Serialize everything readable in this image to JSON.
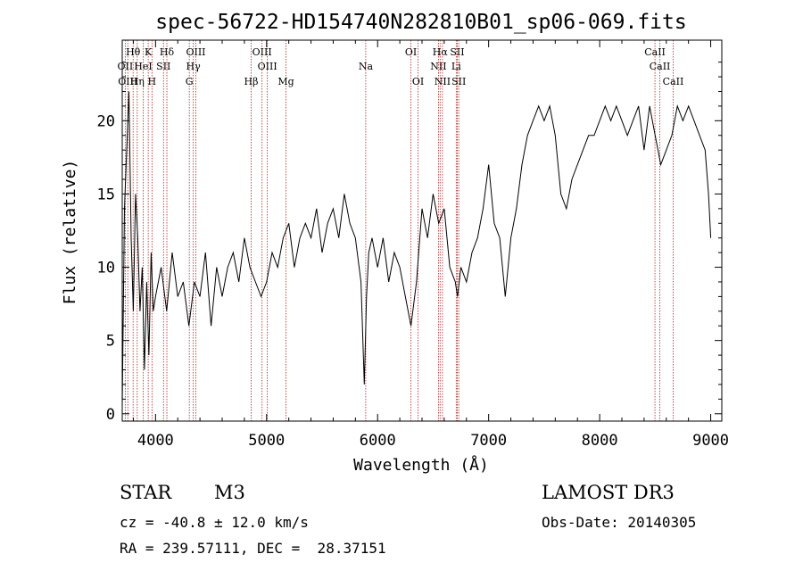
{
  "chart_data": {
    "type": "line",
    "title": "spec-56722-HD154740N282810B01_sp06-069.fits",
    "xlabel": "Wavelength (Å)",
    "ylabel": "Flux (relative)",
    "xlim": [
      3700,
      9100
    ],
    "ylim": [
      -0.5,
      25.5
    ],
    "xticks": [
      4000,
      5000,
      6000,
      7000,
      8000,
      9000
    ],
    "yticks": [
      0,
      5,
      10,
      15,
      20
    ],
    "series": [
      {
        "x": [
          3700,
          3720,
          3740,
          3760,
          3780,
          3800,
          3820,
          3840,
          3860,
          3880,
          3900,
          3920,
          3940,
          3960,
          3980,
          4000,
          4050,
          4100,
          4150,
          4200,
          4250,
          4300,
          4350,
          4400,
          4450,
          4500,
          4550,
          4600,
          4650,
          4700,
          4750,
          4800,
          4850,
          4900,
          4950,
          5000,
          5050,
          5100,
          5150,
          5200,
          5250,
          5300,
          5350,
          5400,
          5450,
          5500,
          5550,
          5600,
          5650,
          5700,
          5750,
          5800,
          5850,
          5880,
          5900,
          5920,
          5950,
          6000,
          6050,
          6100,
          6150,
          6200,
          6250,
          6300,
          6350,
          6400,
          6450,
          6500,
          6550,
          6600,
          6650,
          6700,
          6720,
          6750,
          6800,
          6850,
          6900,
          6950,
          7000,
          7050,
          7100,
          7150,
          7200,
          7250,
          7300,
          7350,
          7400,
          7450,
          7500,
          7550,
          7600,
          7650,
          7700,
          7750,
          7800,
          7850,
          7900,
          7950,
          8000,
          8050,
          8100,
          8150,
          8200,
          8250,
          8300,
          8350,
          8400,
          8450,
          8500,
          8550,
          8600,
          8650,
          8700,
          8750,
          8800,
          8850,
          8900,
          8950,
          8980,
          9000
        ],
        "y": [
          0.5,
          14,
          18,
          22,
          12,
          7,
          15,
          12,
          7,
          10,
          3,
          9,
          4,
          11,
          7,
          8,
          10,
          7,
          11,
          8,
          9,
          6,
          9,
          8,
          11,
          6,
          10,
          8,
          10,
          11,
          9,
          12,
          10,
          9,
          8,
          9,
          11,
          10,
          12,
          13,
          10,
          12,
          13,
          12,
          14,
          11,
          13,
          14,
          12,
          15,
          13,
          12,
          9,
          2,
          8,
          11,
          12,
          10,
          12,
          9,
          11,
          10,
          8,
          6,
          9,
          14,
          12,
          15,
          13,
          14,
          10,
          9,
          8,
          10,
          9,
          11,
          12,
          14,
          17,
          13,
          12,
          8,
          12,
          14,
          17,
          19,
          20,
          21,
          20,
          21,
          19,
          15,
          14,
          16,
          17,
          18,
          19,
          19,
          20,
          21,
          20,
          21,
          20,
          19,
          20,
          21,
          18,
          21,
          19,
          17,
          18,
          19,
          21,
          20,
          21,
          20,
          19,
          18,
          15,
          12
        ]
      }
    ],
    "line_markers": [
      {
        "label": "Hθ",
        "x": 3798,
        "tier": 1
      },
      {
        "label": "K",
        "x": 3934,
        "tier": 1
      },
      {
        "label": "Hδ",
        "x": 4102,
        "tier": 1
      },
      {
        "label": "OIII",
        "x": 4363,
        "tier": 1
      },
      {
        "label": "OIII",
        "x": 4959,
        "tier": 1
      },
      {
        "label": "OI",
        "x": 6300,
        "tier": 1
      },
      {
        "label": "Hα",
        "x": 6563,
        "tier": 1
      },
      {
        "label": "SII",
        "x": 6717,
        "tier": 1
      },
      {
        "label": "CaII",
        "x": 8498,
        "tier": 1
      },
      {
        "label": "OII",
        "x": 3727,
        "tier": 2
      },
      {
        "label": "HeI",
        "x": 3889,
        "tier": 2
      },
      {
        "label": "SII",
        "x": 4072,
        "tier": 2
      },
      {
        "label": "Hγ",
        "x": 4340,
        "tier": 2
      },
      {
        "label": "OIII",
        "x": 5007,
        "tier": 2
      },
      {
        "label": "Na",
        "x": 5893,
        "tier": 2
      },
      {
        "label": "NII",
        "x": 6548,
        "tier": 2
      },
      {
        "label": "Li",
        "x": 6708,
        "tier": 2
      },
      {
        "label": "CaII",
        "x": 8542,
        "tier": 2
      },
      {
        "label": "OIII",
        "x": 3750,
        "tier": 3
      },
      {
        "label": "Hη",
        "x": 3835,
        "tier": 3
      },
      {
        "label": "H",
        "x": 3968,
        "tier": 3
      },
      {
        "label": "G",
        "x": 4304,
        "tier": 3
      },
      {
        "label": "Hβ",
        "x": 4861,
        "tier": 3
      },
      {
        "label": "Mg",
        "x": 5175,
        "tier": 3
      },
      {
        "label": "OI",
        "x": 6364,
        "tier": 3
      },
      {
        "label": "NII",
        "x": 6584,
        "tier": 3
      },
      {
        "label": "SII",
        "x": 6731,
        "tier": 3
      },
      {
        "label": "CaII",
        "x": 8662,
        "tier": 3
      }
    ],
    "grid": false,
    "marker_color": "#b22222",
    "line_color": "#000000"
  },
  "info": {
    "object_type": "STAR",
    "subclass": "M3",
    "survey": "LAMOST DR3",
    "cz": "cz = -40.8 ± 12.0 km/s",
    "obs_date": "Obs-Date: 20140305",
    "coords": "RA = 239.57111, DEC =  28.37151"
  }
}
